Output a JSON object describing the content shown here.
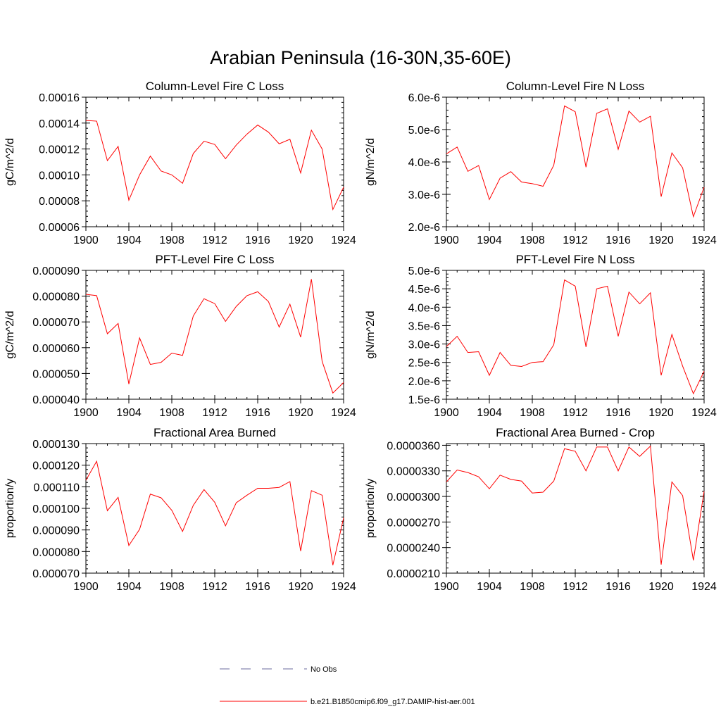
{
  "figure": {
    "title": "Arabian Peninsula (16-30N,35-60E)"
  },
  "legend": {
    "placement": "bottom-center",
    "entries": [
      {
        "label": "No Obs",
        "color": "#6a6a9c",
        "style": "dashed"
      },
      {
        "label": "b.e21.B1850cmip6.f09_g17.DAMIP-hist-aer.001",
        "color": "#ff0000",
        "style": "solid"
      }
    ]
  },
  "chart_data": [
    {
      "type": "line",
      "title": "Column-Level Fire C Loss",
      "xlabel": "",
      "ylabel": "gC/m^2/d",
      "xlim": [
        1900,
        1924
      ],
      "ylim": [
        6e-05,
        0.00016
      ],
      "xticks": [
        1900,
        1904,
        1908,
        1912,
        1916,
        1920,
        1924
      ],
      "xtick_labels": [
        "1900",
        "1904",
        "1908",
        "1912",
        "1916",
        "1920",
        "1924"
      ],
      "yticks": [
        6e-05,
        8e-05,
        0.0001,
        0.00012,
        0.00014,
        0.00016
      ],
      "ytick_labels": [
        "0.00006",
        "0.00008",
        "0.00010",
        "0.00012",
        "0.00014",
        "0.00016"
      ],
      "grid": false,
      "x": [
        1900,
        1901,
        1902,
        1903,
        1904,
        1905,
        1906,
        1907,
        1908,
        1909,
        1910,
        1911,
        1912,
        1913,
        1914,
        1915,
        1916,
        1917,
        1918,
        1919,
        1920,
        1921,
        1922,
        1923,
        1924
      ],
      "series": [
        {
          "color": "#ff0000",
          "values": [
            0.000142,
            0.0001415,
            0.000111,
            0.000122,
            8.05e-05,
            0.0001,
            0.0001145,
            0.000103,
            0.0001,
            9.35e-05,
            0.0001165,
            0.000126,
            0.0001235,
            0.0001125,
            0.000123,
            0.0001315,
            0.0001385,
            0.000133,
            0.000124,
            0.0001275,
            0.0001015,
            0.0001345,
            0.00012,
            7.33e-05,
            9.05e-05
          ]
        }
      ]
    },
    {
      "type": "line",
      "title": "Column-Level Fire N Loss",
      "xlabel": "",
      "ylabel": "gN/m^2/d",
      "xlim": [
        1900,
        1924
      ],
      "ylim": [
        2e-06,
        6e-06
      ],
      "xticks": [
        1900,
        1904,
        1908,
        1912,
        1916,
        1920,
        1924
      ],
      "xtick_labels": [
        "1900",
        "1904",
        "1908",
        "1912",
        "1916",
        "1920",
        "1924"
      ],
      "yticks": [
        2e-06,
        3e-06,
        4e-06,
        5e-06,
        6e-06
      ],
      "ytick_labels": [
        "2.0e-6",
        "3.0e-6",
        "4.0e-6",
        "5.0e-6",
        "6.0e-6"
      ],
      "grid": false,
      "x": [
        1900,
        1901,
        1902,
        1903,
        1904,
        1905,
        1906,
        1907,
        1908,
        1909,
        1910,
        1911,
        1912,
        1913,
        1914,
        1915,
        1916,
        1917,
        1918,
        1919,
        1920,
        1921,
        1922,
        1923,
        1924
      ],
      "series": [
        {
          "color": "#ff0000",
          "values": [
            4.25e-06,
            4.46e-06,
            3.71e-06,
            3.89e-06,
            2.84e-06,
            3.5e-06,
            3.7e-06,
            3.38e-06,
            3.33e-06,
            3.25e-06,
            3.9e-06,
            5.73e-06,
            5.55e-06,
            3.84e-06,
            5.5e-06,
            5.64e-06,
            4.39e-06,
            5.57e-06,
            5.23e-06,
            5.41e-06,
            2.93e-06,
            4.28e-06,
            3.82e-06,
            2.31e-06,
            3.22e-06
          ]
        }
      ]
    },
    {
      "type": "line",
      "title": "PFT-Level Fire C Loss",
      "xlabel": "",
      "ylabel": "gC/m^2/d",
      "xlim": [
        1900,
        1924
      ],
      "ylim": [
        4e-05,
        9e-05
      ],
      "xticks": [
        1900,
        1904,
        1908,
        1912,
        1916,
        1920,
        1924
      ],
      "xtick_labels": [
        "1900",
        "1904",
        "1908",
        "1912",
        "1916",
        "1920",
        "1924"
      ],
      "yticks": [
        4e-05,
        5e-05,
        6e-05,
        7e-05,
        8e-05,
        9e-05
      ],
      "ytick_labels": [
        "0.000040",
        "0.000050",
        "0.000060",
        "0.000070",
        "0.000080",
        "0.000090"
      ],
      "grid": false,
      "x": [
        1900,
        1901,
        1902,
        1903,
        1904,
        1905,
        1906,
        1907,
        1908,
        1909,
        1910,
        1911,
        1912,
        1913,
        1914,
        1915,
        1916,
        1917,
        1918,
        1919,
        1920,
        1921,
        1922,
        1923,
        1924
      ],
      "series": [
        {
          "color": "#ff0000",
          "values": [
            8.07e-05,
            8.02e-05,
            6.54e-05,
            6.94e-05,
            4.59e-05,
            6.38e-05,
            5.35e-05,
            5.43e-05,
            5.79e-05,
            5.7e-05,
            7.23e-05,
            7.9e-05,
            7.71e-05,
            7.02e-05,
            7.6e-05,
            8.02e-05,
            8.17e-05,
            7.79e-05,
            6.8e-05,
            7.69e-05,
            6.41e-05,
            8.66e-05,
            5.47e-05,
            4.24e-05,
            4.65e-05
          ]
        }
      ]
    },
    {
      "type": "line",
      "title": "PFT-Level Fire N Loss",
      "xlabel": "",
      "ylabel": "gN/m^2/d",
      "xlim": [
        1900,
        1924
      ],
      "ylim": [
        1.5e-06,
        5e-06
      ],
      "xticks": [
        1900,
        1904,
        1908,
        1912,
        1916,
        1920,
        1924
      ],
      "xtick_labels": [
        "1900",
        "1904",
        "1908",
        "1912",
        "1916",
        "1920",
        "1924"
      ],
      "yticks": [
        1.5e-06,
        2e-06,
        2.5e-06,
        3e-06,
        3.5e-06,
        4e-06,
        4.5e-06,
        5e-06
      ],
      "ytick_labels": [
        "1.5e-6",
        "2.0e-6",
        "2.5e-6",
        "3.0e-6",
        "3.5e-6",
        "4.0e-6",
        "4.5e-6",
        "5.0e-6"
      ],
      "grid": false,
      "x": [
        1900,
        1901,
        1902,
        1903,
        1904,
        1905,
        1906,
        1907,
        1908,
        1909,
        1910,
        1911,
        1912,
        1913,
        1914,
        1915,
        1916,
        1917,
        1918,
        1919,
        1920,
        1921,
        1922,
        1923,
        1924
      ],
      "series": [
        {
          "color": "#ff0000",
          "values": [
            2.93e-06,
            3.21e-06,
            2.77e-06,
            2.79e-06,
            2.15e-06,
            2.77e-06,
            2.42e-06,
            2.39e-06,
            2.5e-06,
            2.52e-06,
            2.98e-06,
            4.74e-06,
            4.57e-06,
            2.92e-06,
            4.5e-06,
            4.57e-06,
            3.21e-06,
            4.41e-06,
            4.09e-06,
            4.39e-06,
            2.15e-06,
            3.26e-06,
            2.4e-06,
            1.65e-06,
            2.26e-06
          ]
        }
      ]
    },
    {
      "type": "line",
      "title": "Fractional Area Burned",
      "xlabel": "",
      "ylabel": "proportion/y",
      "xlim": [
        1900,
        1924
      ],
      "ylim": [
        7e-05,
        0.00013
      ],
      "xticks": [
        1900,
        1904,
        1908,
        1912,
        1916,
        1920,
        1924
      ],
      "xtick_labels": [
        "1900",
        "1904",
        "1908",
        "1912",
        "1916",
        "1920",
        "1924"
      ],
      "yticks": [
        7e-05,
        8e-05,
        9e-05,
        0.0001,
        0.00011,
        0.00012,
        0.00013
      ],
      "ytick_labels": [
        "0.000070",
        "0.000080",
        "0.000090",
        "0.000100",
        "0.000110",
        "0.000120",
        "0.000130"
      ],
      "grid": false,
      "x": [
        1900,
        1901,
        1902,
        1903,
        1904,
        1905,
        1906,
        1907,
        1908,
        1909,
        1910,
        1911,
        1912,
        1913,
        1914,
        1915,
        1916,
        1917,
        1918,
        1919,
        1920,
        1921,
        1922,
        1923,
        1924
      ],
      "series": [
        {
          "color": "#ff0000",
          "values": [
            0.000113,
            0.0001218,
            9.89e-05,
            0.0001051,
            8.28e-05,
            9.03e-05,
            0.0001066,
            0.0001049,
            9.91e-05,
            8.93e-05,
            0.0001014,
            0.0001087,
            0.0001028,
            9.19e-05,
            0.0001026,
            0.0001061,
            0.0001093,
            0.0001093,
            0.0001097,
            0.0001124,
            8.02e-05,
            0.0001082,
            0.0001061,
            7.37e-05,
            9.56e-05
          ]
        }
      ]
    },
    {
      "type": "line",
      "title": "Fractional Area Burned - Crop",
      "xlabel": "",
      "ylabel": "proportion/y",
      "xlim": [
        1900,
        1924
      ],
      "ylim": [
        2.1e-05,
        3.62e-05
      ],
      "xticks": [
        1900,
        1904,
        1908,
        1912,
        1916,
        1920,
        1924
      ],
      "xtick_labels": [
        "1900",
        "1904",
        "1908",
        "1912",
        "1916",
        "1920",
        "1924"
      ],
      "yticks": [
        2.1e-05,
        2.4e-05,
        2.7e-05,
        3e-05,
        3.3e-05,
        3.6e-05
      ],
      "ytick_labels": [
        "0.0000210",
        "0.0000240",
        "0.0000270",
        "0.0000300",
        "0.0000330",
        "0.0000360"
      ],
      "grid": false,
      "x": [
        1900,
        1901,
        1902,
        1903,
        1904,
        1905,
        1906,
        1907,
        1908,
        1909,
        1910,
        1911,
        1912,
        1913,
        1914,
        1915,
        1916,
        1917,
        1918,
        1919,
        1920,
        1921,
        1922,
        1923,
        1924
      ],
      "series": [
        {
          "color": "#ff0000",
          "values": [
            3.17e-05,
            3.31e-05,
            3.28e-05,
            3.23e-05,
            3.09e-05,
            3.25e-05,
            3.2e-05,
            3.18e-05,
            3.04e-05,
            3.05e-05,
            3.18e-05,
            3.56e-05,
            3.53e-05,
            3.3e-05,
            3.58e-05,
            3.58e-05,
            3.3e-05,
            3.58e-05,
            3.47e-05,
            3.59e-05,
            2.2e-05,
            3.17e-05,
            3.01e-05,
            2.25e-05,
            3.06e-05
          ]
        }
      ]
    }
  ]
}
